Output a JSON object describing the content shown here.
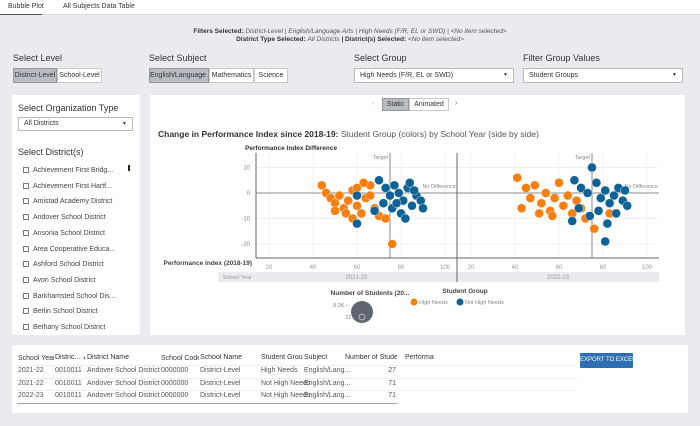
{
  "tabs": [
    "Bubble Plot",
    "All Subjects Data Table"
  ],
  "filters": {
    "line1_label": "Filters Selected:",
    "line1_value": "District-Level | English/Language Arts | High Needs (F/R, EL or SWD) | <No item selected>",
    "line2_label1": "District Type Selected:",
    "line2_value1": "All Districts",
    "line2_label2": "| District(s) Selected:",
    "line2_value2": "<No item selected>"
  },
  "level": {
    "label": "Select Level",
    "options": [
      "District-Level",
      "School-Level"
    ],
    "selected": "District-Level"
  },
  "subject": {
    "label": "Select Subject",
    "options": [
      "English/Language Arts",
      "Mathematics",
      "Science"
    ],
    "selected": "English/Language Arts"
  },
  "group": {
    "label": "Select Group",
    "value": "High Needs (F/R, EL or SWD)"
  },
  "filter_group": {
    "label": "Filter Group Values",
    "value": "Student Groups"
  },
  "org_type": {
    "label": "Select Organization Type",
    "value": "All Districts"
  },
  "districts": {
    "label": "Select District(s)",
    "items": [
      "Achievement First Bridg...",
      "Achievement First Hartf...",
      "Amistad Academy District",
      "Andover School District",
      "Ansonia School District",
      "Area Cooperative Educa...",
      "Ashford School District",
      "Avon School District",
      "Barkhamsted School Dis...",
      "Berlin School District",
      "Bethany School District"
    ]
  },
  "view_toggle": {
    "options": [
      "Static",
      "Animated"
    ],
    "selected": "Static",
    "prev": "‹",
    "next": "›"
  },
  "chart_title_bold": "Change in Performance Index since 2018-19:",
  "chart_title_rest": " Student Group (colors) by School Year (side by side)",
  "chart_data": {
    "type": "scatter",
    "ylabel": "Performance Index Difference",
    "xlabel": "Performance Index (2018-19)",
    "facet_label": "School Year",
    "xticks": [
      20,
      40,
      60,
      80,
      100
    ],
    "yticks": [
      10,
      0,
      -10,
      -20
    ],
    "xlim": [
      15,
      105
    ],
    "ylim": [
      -25,
      15
    ],
    "reference_lines": {
      "x": 75,
      "x_label": "Target",
      "y": 0,
      "y_label": "No Difference"
    },
    "size_legend": {
      "title": "Number of Students (20...",
      "max": "8.3K",
      "min": "21"
    },
    "color_legend": {
      "title": "Student Group"
    },
    "colors": {
      "High Needs": "#f57f0f",
      "Not High Needs": "#0f6296"
    },
    "panels": [
      {
        "name": "2021-22",
        "series": [
          {
            "name": "High Needs",
            "points": [
              [
                44,
                3
              ],
              [
                46,
                0
              ],
              [
                48,
                -2
              ],
              [
                50,
                -4
              ],
              [
                52,
                -1
              ],
              [
                54,
                -6
              ],
              [
                56,
                -3
              ],
              [
                58,
                1
              ],
              [
                60,
                -5
              ],
              [
                62,
                -8
              ],
              [
                64,
                -2
              ],
              [
                66,
                3
              ],
              [
                68,
                -6
              ],
              [
                70,
                -9
              ],
              [
                72,
                -4
              ],
              [
                55,
                -8
              ],
              [
                50,
                -7
              ],
              [
                58,
                -10
              ],
              [
                63,
                4
              ],
              [
                76,
                -20
              ],
              [
                73,
                -10
              ],
              [
                66,
                -1
              ],
              [
                60,
                2
              ]
            ]
          },
          {
            "name": "Not High Needs",
            "points": [
              [
                70,
                5
              ],
              [
                73,
                2
              ],
              [
                75,
                -1
              ],
              [
                77,
                3
              ],
              [
                79,
                0
              ],
              [
                81,
                -3
              ],
              [
                83,
                2
              ],
              [
                85,
                -5
              ],
              [
                87,
                -1
              ],
              [
                89,
                -3
              ],
              [
                90,
                -6
              ],
              [
                80,
                -8
              ],
              [
                76,
                -6
              ],
              [
                72,
                -4
              ],
              [
                60,
                -12
              ],
              [
                82,
                -10
              ],
              [
                68,
                -7
              ],
              [
                84,
                4
              ],
              [
                78,
                -4
              ],
              [
                86,
                1
              ],
              [
                60,
                -1
              ]
            ]
          }
        ]
      },
      {
        "name": "2022-23",
        "series": [
          {
            "name": "High Needs",
            "points": [
              [
                41,
                6
              ],
              [
                43,
                -6
              ],
              [
                47,
                -2
              ],
              [
                49,
                3
              ],
              [
                52,
                -4
              ],
              [
                54,
                0
              ],
              [
                56,
                -7
              ],
              [
                58,
                -2
              ],
              [
                60,
                4
              ],
              [
                62,
                -5
              ],
              [
                64,
                -1
              ],
              [
                66,
                -8
              ],
              [
                68,
                -3
              ],
              [
                70,
                -6
              ],
              [
                72,
                -10
              ],
              [
                76,
                -14
              ],
              [
                83,
                -8
              ],
              [
                57,
                -9
              ],
              [
                51,
                -8
              ],
              [
                45,
                2
              ]
            ]
          },
          {
            "name": "Not High Needs",
            "points": [
              [
                67,
                5
              ],
              [
                70,
                2
              ],
              [
                73,
                0
              ],
              [
                75,
                10
              ],
              [
                77,
                4
              ],
              [
                79,
                -2
              ],
              [
                81,
                1
              ],
              [
                83,
                -4
              ],
              [
                85,
                -1
              ],
              [
                87,
                2
              ],
              [
                89,
                -3
              ],
              [
                91,
                -5
              ],
              [
                78,
                -7
              ],
              [
                74,
                -9
              ],
              [
                66,
                -11
              ],
              [
                81,
                -19
              ],
              [
                86,
                -8
              ],
              [
                69,
                -6
              ],
              [
                82,
                -12
              ],
              [
                90,
                1
              ]
            ]
          }
        ]
      }
    ]
  },
  "table": {
    "columns": [
      "School Year ▴",
      "Distric... ▲",
      "District Name",
      "School Code ▴",
      "School Name",
      "Student Group",
      "Subject",
      "Number of Students...",
      "Performa"
    ],
    "rows": [
      [
        "2021-22",
        "0010011",
        "Andover School District",
        "0000000",
        "District-Level",
        "High Needs",
        "English/Lang...",
        "27",
        ""
      ],
      [
        "2021-22",
        "0010011",
        "Andover School District",
        "0000000",
        "District-Level",
        "Not High Needs",
        "English/Lang...",
        "71",
        ""
      ],
      [
        "2022-23",
        "0010011",
        "Andover School District",
        "0000000",
        "District-Level",
        "Not High Needs",
        "English/Lang...",
        "71",
        ""
      ]
    ],
    "export_label": "EXPORT TO EXCEL"
  }
}
